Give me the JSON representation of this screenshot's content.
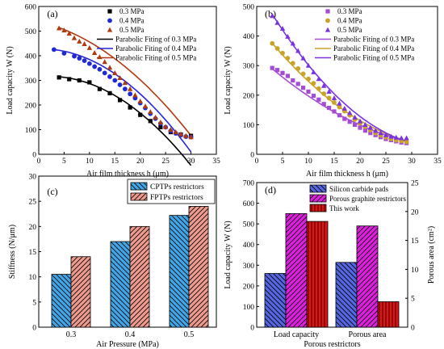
{
  "chart_data": [
    {
      "panel": "(a)",
      "type": "scatter",
      "xlabel": "Air film thickness h (μm)",
      "ylabel": "Load capacity W (N)",
      "xlim": [
        0,
        35
      ],
      "ylim": [
        0,
        600
      ],
      "xticks": [
        "0",
        "5",
        "10",
        "15",
        "20",
        "25",
        "30",
        "35"
      ],
      "yticks": [
        "0",
        "100",
        "200",
        "300",
        "400",
        "500",
        "600"
      ],
      "legend_placement": "top-right",
      "series": [
        {
          "name": "0.3 MPa",
          "marker": "square",
          "color": "#000000",
          "x": [
            4,
            6,
            8,
            10,
            12,
            14,
            16,
            18,
            20,
            22,
            24,
            26,
            28,
            30
          ],
          "y": [
            312,
            305,
            300,
            292,
            265,
            248,
            220,
            190,
            160,
            135,
            110,
            90,
            80,
            75
          ]
        },
        {
          "name": "0.4 MPa",
          "marker": "circle",
          "color": "#1f2ad6",
          "x": [
            3,
            5,
            7,
            8,
            9,
            10,
            11,
            12,
            13,
            14,
            15,
            16,
            17,
            18,
            19,
            20,
            21,
            22,
            23,
            24,
            25,
            26,
            27,
            28,
            29,
            30
          ],
          "y": [
            425,
            410,
            398,
            390,
            380,
            368,
            356,
            345,
            330,
            315,
            300,
            282,
            265,
            245,
            228,
            208,
            188,
            165,
            145,
            125,
            110,
            95,
            85,
            78,
            72,
            70
          ]
        },
        {
          "name": "0.5 MPa",
          "marker": "triangle",
          "color": "#b03a10",
          "x": [
            4,
            5,
            6,
            7,
            8,
            9,
            10,
            11,
            12,
            13,
            14,
            15,
            16,
            17,
            18,
            19,
            20,
            21,
            22,
            23,
            24,
            25,
            26,
            27,
            28,
            29,
            30
          ],
          "y": [
            512,
            503,
            490,
            472,
            458,
            448,
            432,
            412,
            395,
            375,
            352,
            330,
            310,
            290,
            265,
            240,
            215,
            195,
            172,
            150,
            130,
            112,
            100,
            90,
            82,
            75,
            70
          ]
        }
      ],
      "fits": [
        {
          "name": "Parabolic Fiting of 0.3 MPa",
          "color": "#000000",
          "x": [
            4,
            30
          ],
          "quad": [
            -0.46,
            1.8,
            315
          ]
        },
        {
          "name": "Parabolic Fiting of 0.4 MPa",
          "color": "#2626d9",
          "x": [
            3,
            30
          ],
          "quad": [
            -0.48,
            0.45,
            428
          ]
        },
        {
          "name": "Parabolic Fiting of 0.5 MPa",
          "color": "#b03a10",
          "x": [
            4,
            30
          ],
          "quad": [
            -0.36,
            -4.6,
            538
          ]
        }
      ]
    },
    {
      "panel": "(b)",
      "type": "scatter",
      "xlabel": "Air film thickness h (μm)",
      "ylabel": "Load capacity W (N)",
      "xlim": [
        0,
        35
      ],
      "ylim": [
        0,
        500
      ],
      "xticks": [
        "0",
        "5",
        "10",
        "15",
        "20",
        "25",
        "30",
        "35"
      ],
      "yticks": [
        "0",
        "100",
        "200",
        "300",
        "400",
        "500"
      ],
      "legend_placement": "top-right",
      "series": [
        {
          "name": "0.3 MPa",
          "marker": "square",
          "color": "#a64bd6",
          "x": [
            3,
            4,
            5,
            6,
            7,
            8,
            9,
            10,
            11,
            12,
            13,
            14,
            15,
            16,
            17,
            18,
            19,
            20,
            21,
            22,
            23,
            24,
            25,
            26,
            27,
            28,
            29
          ],
          "y": [
            292,
            285,
            275,
            265,
            250,
            238,
            225,
            212,
            198,
            185,
            170,
            157,
            145,
            132,
            120,
            110,
            100,
            90,
            80,
            72,
            65,
            58,
            52,
            48,
            44,
            40,
            38
          ]
        },
        {
          "name": "0.4 MPa",
          "marker": "circle",
          "color": "#c9a226",
          "x": [
            3,
            4,
            5,
            6,
            7,
            8,
            9,
            10,
            11,
            12,
            13,
            14,
            15,
            16,
            17,
            18,
            19,
            20,
            21,
            22,
            23,
            24,
            25,
            26,
            27,
            28,
            29
          ],
          "y": [
            375,
            358,
            342,
            325,
            308,
            290,
            272,
            255,
            240,
            222,
            205,
            190,
            175,
            160,
            146,
            132,
            118,
            105,
            93,
            82,
            72,
            64,
            58,
            52,
            48,
            45,
            42
          ]
        },
        {
          "name": "0.5 MPa",
          "marker": "triangle",
          "color": "#7b33e0",
          "x": [
            3,
            4,
            5,
            6,
            7,
            8,
            9,
            10,
            11,
            12,
            13,
            14,
            15,
            16,
            17,
            18,
            19,
            20,
            21,
            22,
            23,
            24,
            25,
            26,
            27,
            28,
            29
          ],
          "y": [
            468,
            445,
            425,
            398,
            375,
            350,
            325,
            300,
            278,
            255,
            232,
            212,
            190,
            172,
            155,
            140,
            125,
            112,
            100,
            90,
            80,
            72,
            65,
            60,
            57,
            55,
            55
          ]
        }
      ],
      "fits": [
        {
          "name": "Parabolic Fiting of 0.3 MPa",
          "color": "#a64bd6",
          "x": [
            3,
            29
          ],
          "quad": [
            0.2,
            -15.8,
            335
          ]
        },
        {
          "name": "Parabolic Fiting of 0.4 MPa",
          "color": "#c9a226",
          "x": [
            3,
            29
          ],
          "quad": [
            0.3,
            -22.3,
            440
          ]
        },
        {
          "name": "Parabolic Fiting of 0.5 MPa",
          "color": "#7b33e0",
          "x": [
            3,
            29
          ],
          "quad": [
            0.42,
            -30,
            560
          ]
        }
      ]
    },
    {
      "panel": "(c)",
      "type": "bar",
      "xlabel": "Air Pressure (MPa)",
      "ylabel": "Stiffness (N/μm)",
      "categories": [
        "0.3",
        "0.4",
        "0.5"
      ],
      "ylim": [
        0,
        30
      ],
      "yticks": [
        "0",
        "5",
        "10",
        "15",
        "20",
        "25",
        "30"
      ],
      "legend_placement": "top-left",
      "series": [
        {
          "name": "CPTPs restrictors",
          "color": "#3fa7e8",
          "hatch": "back-diagonal",
          "values": [
            10.5,
            17,
            22.2
          ]
        },
        {
          "name": "FPTPs restrictors",
          "color": "#ee9a8c",
          "hatch": "diagonal",
          "values": [
            14,
            20,
            24
          ]
        }
      ]
    },
    {
      "panel": "(d)",
      "type": "bar",
      "xlabel": "Porous restrictors",
      "ylabel": "Load capacity W (N)",
      "ylabel_right": "Porous area (cm²)",
      "categories": [
        "Load capacity",
        "Porous area"
      ],
      "ylim": [
        0,
        700
      ],
      "ylim_right": [
        0,
        25
      ],
      "yticks": [
        "0",
        "100",
        "200",
        "300",
        "400",
        "500",
        "600",
        "700"
      ],
      "yticks_right": [
        "0",
        "5",
        "10",
        "15",
        "20",
        "25"
      ],
      "legend_placement": "top-left",
      "series": [
        {
          "name": "Silicon carbide pads",
          "color": "#5566e0",
          "hatch": "back-diagonal",
          "values": [
            260,
            11.2
          ]
        },
        {
          "name": "Porous graphite restrictors",
          "color": "#e01ee0",
          "hatch": "diagonal",
          "values": [
            550,
            17.5
          ]
        },
        {
          "name": "This work",
          "color": "#e01414",
          "hatch": "vertical",
          "values": [
            512,
            4.4
          ]
        }
      ]
    }
  ]
}
